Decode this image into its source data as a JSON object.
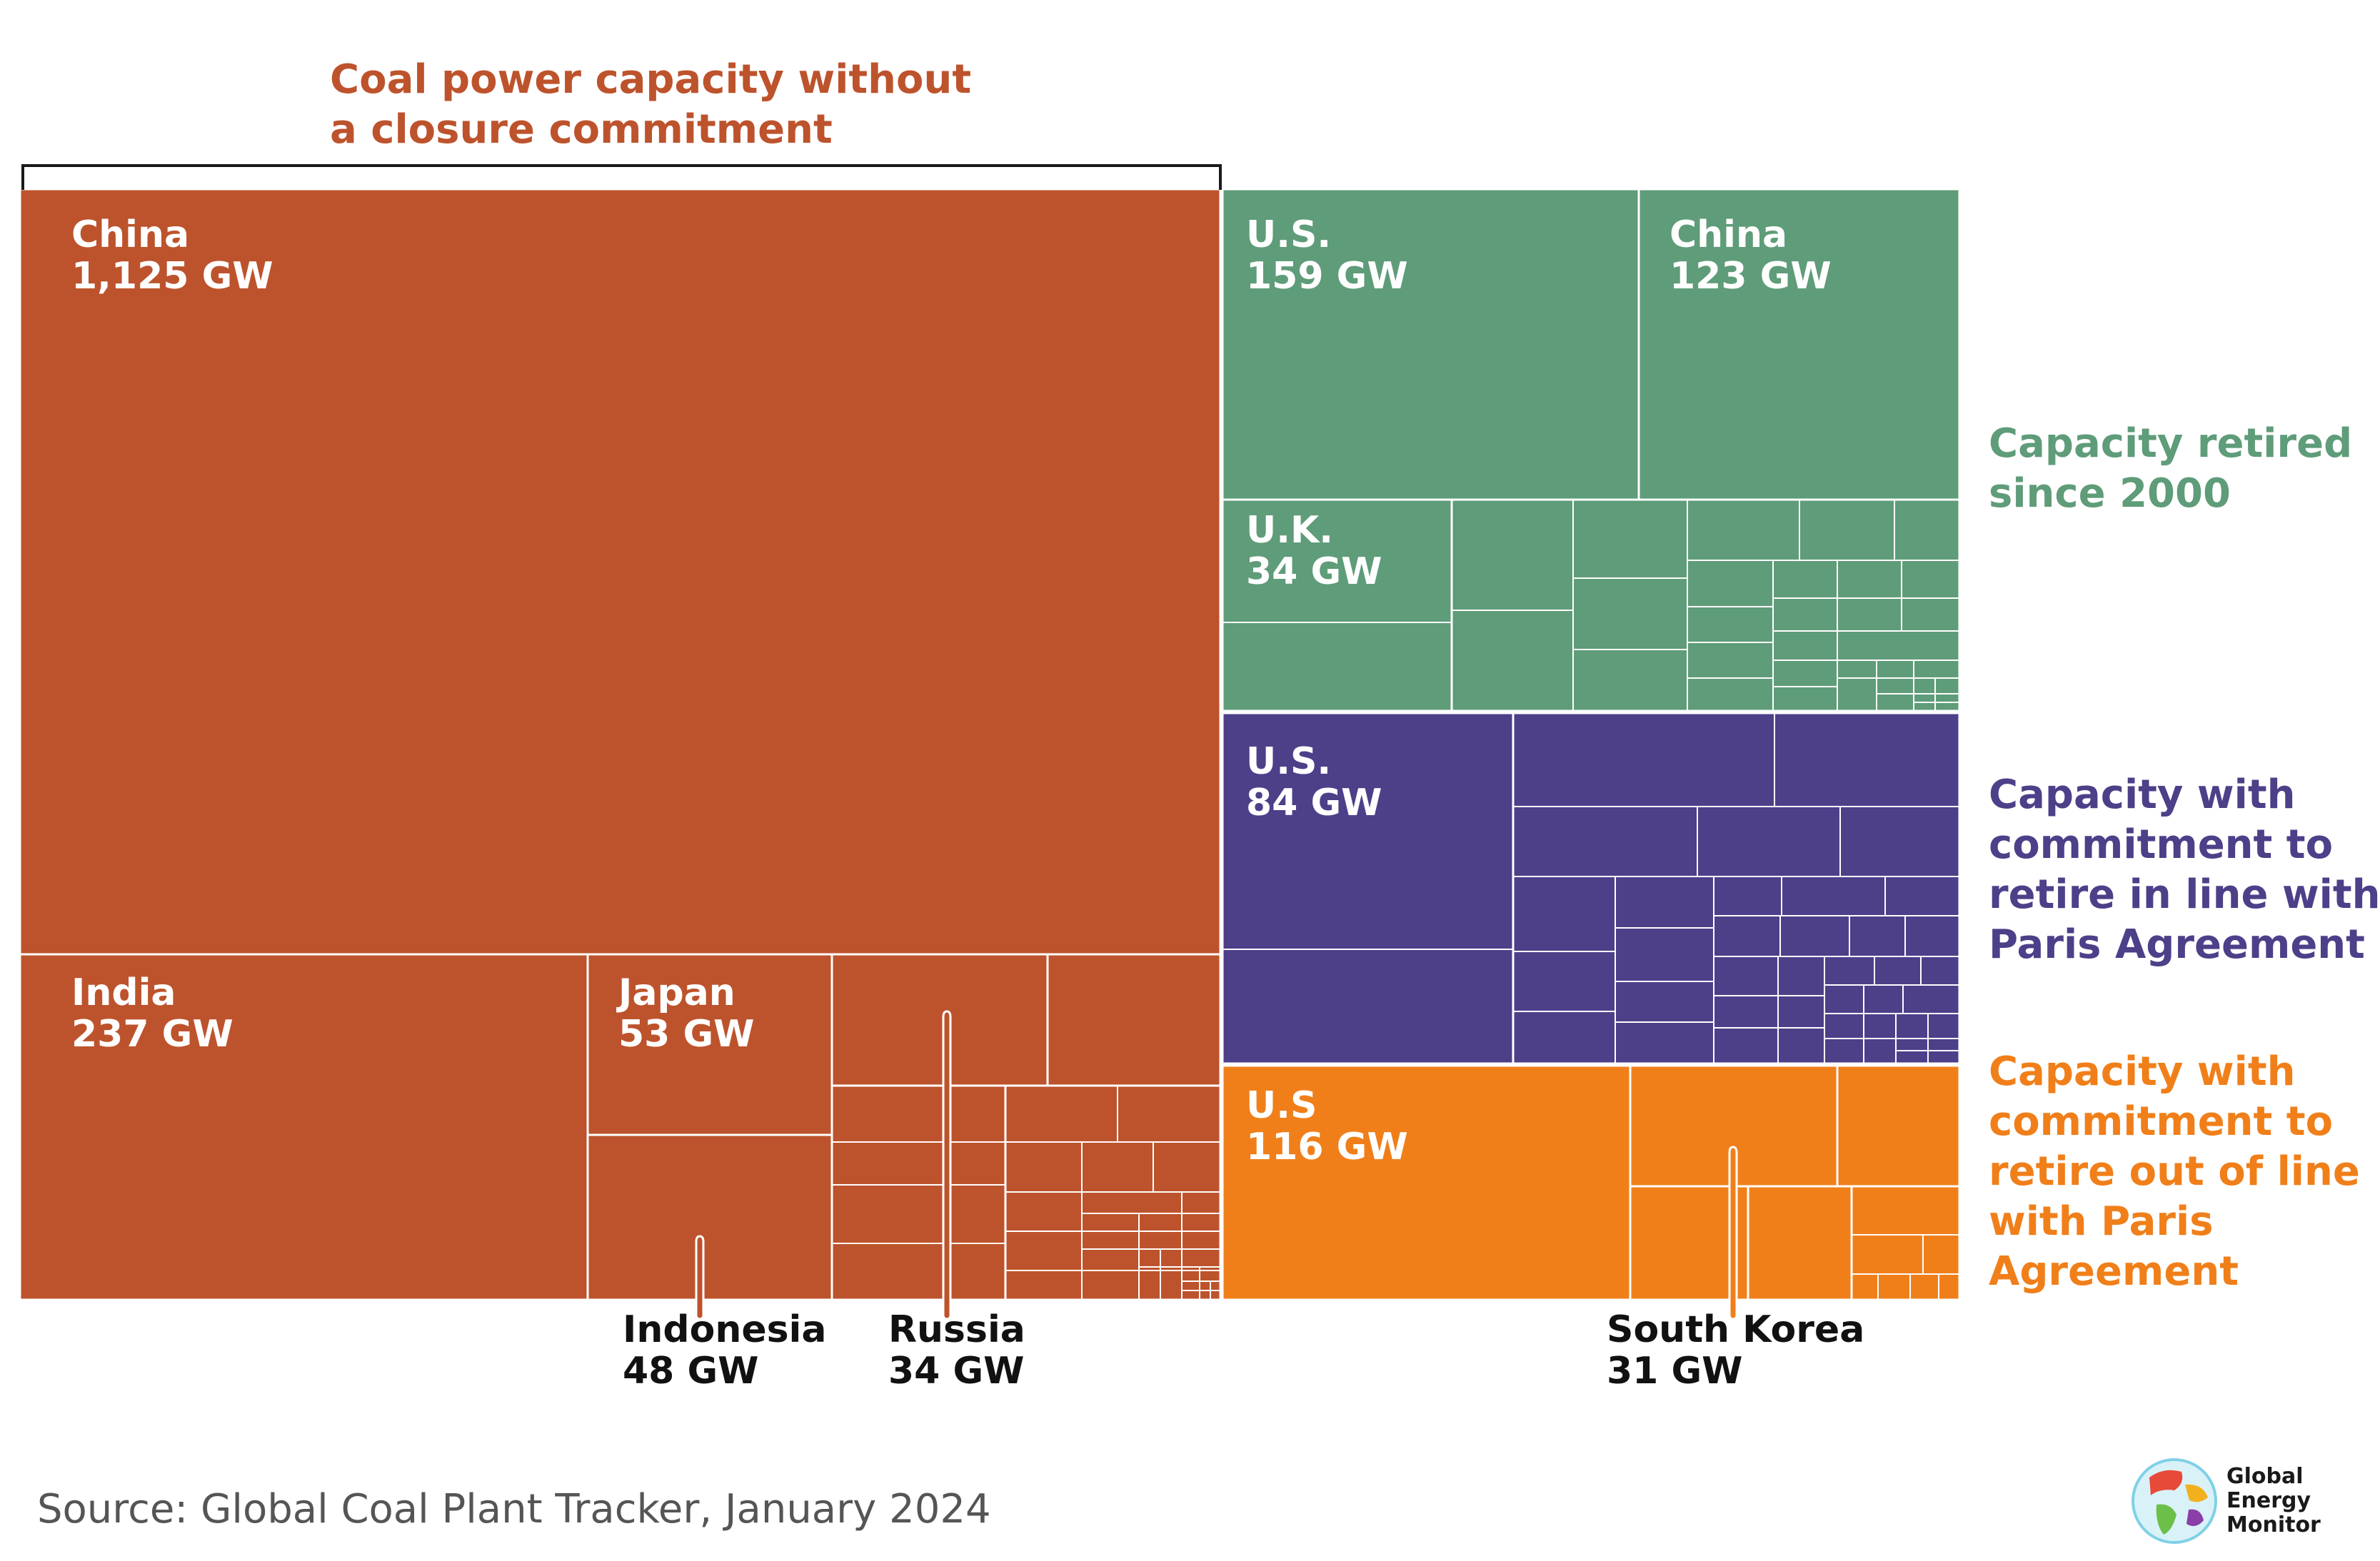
{
  "chart_data": {
    "type": "treemap",
    "unit": "GW",
    "groups": [
      {
        "key": "no_commitment",
        "name_lines": [
          "Coal power capacity without",
          "a closure commitment"
        ],
        "color": "#bd532c",
        "labeled_items": [
          {
            "name": "China",
            "value": 1125,
            "value_label": "1,125 GW"
          },
          {
            "name": "India",
            "value": 237,
            "value_label": "237 GW"
          },
          {
            "name": "Japan",
            "value": 53,
            "value_label": "53 GW"
          },
          {
            "name": "Indonesia",
            "value": 48,
            "value_label": "48 GW"
          },
          {
            "name": "Russia",
            "value": 34,
            "value_label": "34 GW"
          }
        ]
      },
      {
        "key": "retired",
        "name_lines": [
          "Capacity retired",
          "since 2000"
        ],
        "color": "#5f9c79",
        "labeled_items": [
          {
            "name": "U.S.",
            "value": 159,
            "value_label": "159 GW"
          },
          {
            "name": "China",
            "value": 123,
            "value_label": "123 GW"
          },
          {
            "name": "U.K.",
            "value": 34,
            "value_label": "34 GW"
          }
        ]
      },
      {
        "key": "paris",
        "name_lines": [
          "Capacity with",
          "commitment to",
          "retire in line with",
          "Paris Agreement"
        ],
        "color": "#4e3f89",
        "labeled_items": [
          {
            "name": "U.S.",
            "value": 84,
            "value_label": "84 GW"
          }
        ]
      },
      {
        "key": "out_of_line",
        "name_lines": [
          "Capacity with",
          "commitment to",
          "retire out of line",
          "with Paris",
          "Agreement"
        ],
        "color": "#f07f1a",
        "labeled_items": [
          {
            "name": "U.S",
            "value": 116,
            "value_label": "116 GW"
          },
          {
            "name": "South Korea",
            "value": 31,
            "value_label": "31 GW"
          }
        ]
      }
    ],
    "source": "Source: Global Coal Plant Tracker, January 2024"
  },
  "logo": {
    "name_lines": [
      "Global",
      "Energy",
      "Monitor"
    ],
    "icon": "globe-icon",
    "colors": [
      "#7fd1e6",
      "#e84a3a",
      "#6cc04a",
      "#f2b01e",
      "#8a3fa8"
    ]
  },
  "colors": {
    "tile_border": "#ffffff",
    "bracket": "#1a1a1a",
    "outside_label": "#111111",
    "tile_label": "#ffffff"
  }
}
